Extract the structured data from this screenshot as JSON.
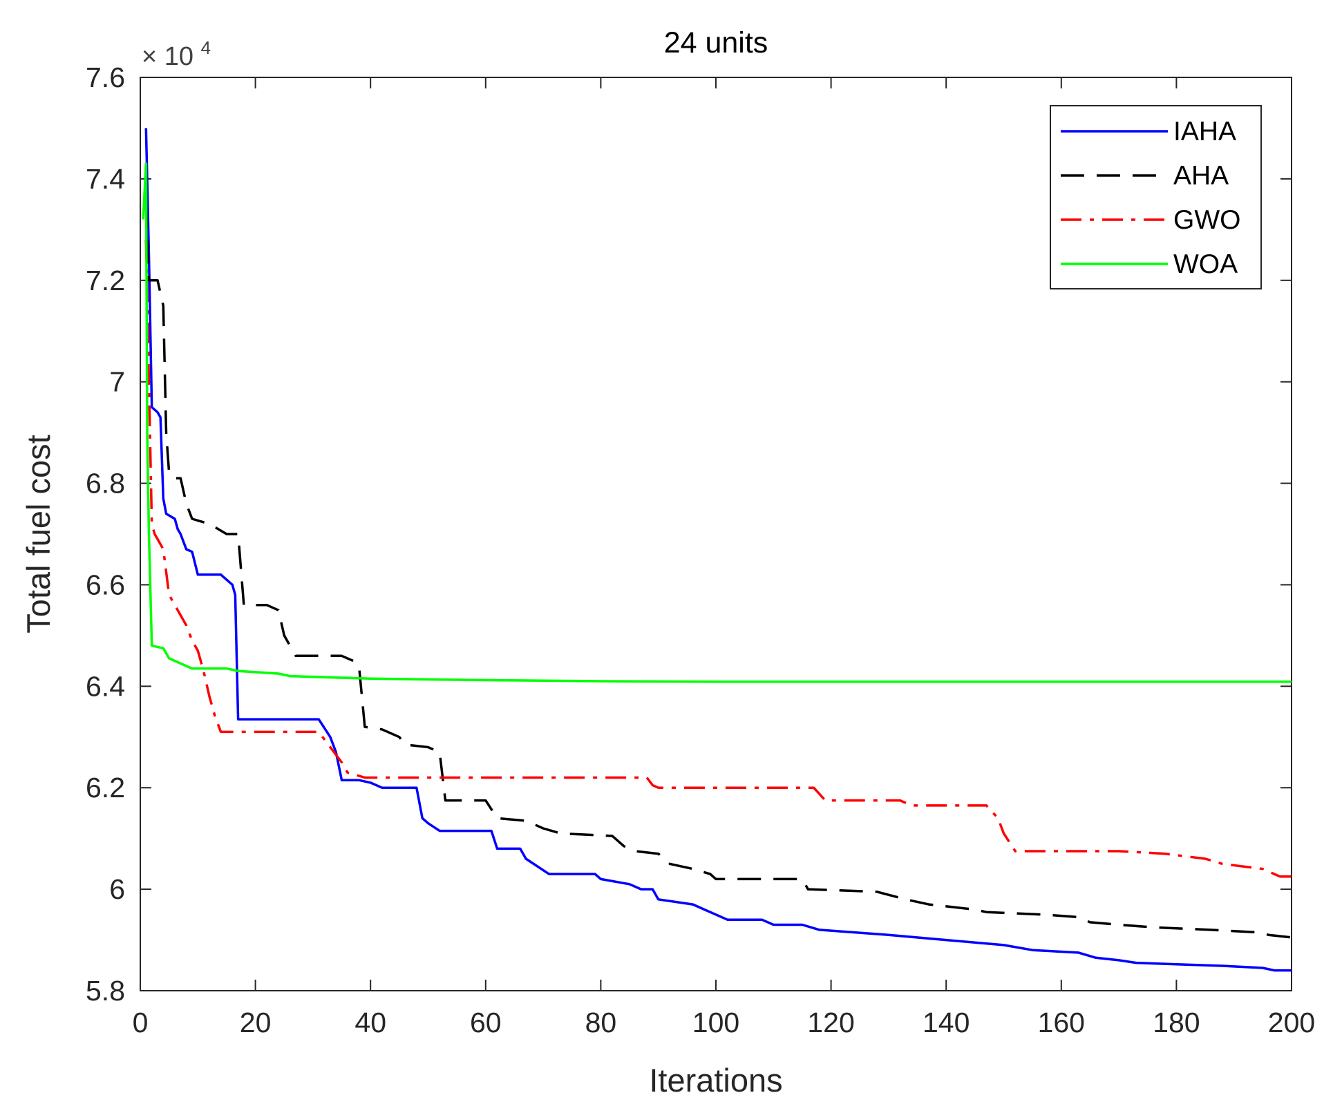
{
  "chart_data": {
    "type": "line",
    "title": "24 units",
    "xlabel": "Iterations",
    "ylabel": "Total fuel cost",
    "y_exponent_multiplier": "×",
    "y_exponent_base": "10",
    "y_exponent_power": "4",
    "xlim": [
      0,
      200
    ],
    "ylim": [
      5.8,
      7.6
    ],
    "xticks": [
      0,
      20,
      40,
      60,
      80,
      100,
      120,
      140,
      160,
      180,
      200
    ],
    "xtick_labels": [
      "0",
      "20",
      "40",
      "60",
      "80",
      "100",
      "120",
      "140",
      "160",
      "180",
      "200"
    ],
    "yticks": [
      5.8,
      6.0,
      6.2,
      6.4,
      6.6,
      6.8,
      7.0,
      7.2,
      7.4,
      7.6
    ],
    "ytick_labels": [
      "5.8",
      "6",
      "6.2",
      "6.4",
      "6.6",
      "6.8",
      "7",
      "7.2",
      "7.4",
      "7.6"
    ],
    "legend_position": "top-right",
    "grid": false,
    "series": [
      {
        "name": "IAHA",
        "color": "#0000ff",
        "dash": "solid",
        "points": [
          [
            1,
            7.5
          ],
          [
            1.5,
            7.25
          ],
          [
            2,
            6.95
          ],
          [
            3,
            6.94
          ],
          [
            3.5,
            6.93
          ],
          [
            4,
            6.77
          ],
          [
            4.5,
            6.74
          ],
          [
            6,
            6.73
          ],
          [
            6.5,
            6.71
          ],
          [
            7,
            6.7
          ],
          [
            8,
            6.67
          ],
          [
            9,
            6.665
          ],
          [
            10,
            6.62
          ],
          [
            14,
            6.62
          ],
          [
            16,
            6.6
          ],
          [
            16.5,
            6.58
          ],
          [
            17,
            6.335
          ],
          [
            31,
            6.335
          ],
          [
            33,
            6.3
          ],
          [
            34,
            6.27
          ],
          [
            35,
            6.215
          ],
          [
            38,
            6.215
          ],
          [
            40,
            6.21
          ],
          [
            42,
            6.2
          ],
          [
            48,
            6.2
          ],
          [
            49,
            6.14
          ],
          [
            50,
            6.13
          ],
          [
            52,
            6.115
          ],
          [
            61,
            6.115
          ],
          [
            62,
            6.08
          ],
          [
            66,
            6.08
          ],
          [
            67,
            6.06
          ],
          [
            71,
            6.03
          ],
          [
            79,
            6.03
          ],
          [
            80,
            6.02
          ],
          [
            85,
            6.01
          ],
          [
            87,
            6.0
          ],
          [
            89,
            6.0
          ],
          [
            90,
            5.98
          ],
          [
            96,
            5.97
          ],
          [
            98,
            5.96
          ],
          [
            100,
            5.95
          ],
          [
            102,
            5.94
          ],
          [
            108,
            5.94
          ],
          [
            110,
            5.93
          ],
          [
            115,
            5.93
          ],
          [
            118,
            5.92
          ],
          [
            130,
            5.91
          ],
          [
            140,
            5.9
          ],
          [
            145,
            5.895
          ],
          [
            150,
            5.89
          ],
          [
            155,
            5.88
          ],
          [
            163,
            5.875
          ],
          [
            166,
            5.865
          ],
          [
            170,
            5.86
          ],
          [
            173,
            5.855
          ],
          [
            180,
            5.852
          ],
          [
            188,
            5.849
          ],
          [
            195,
            5.845
          ],
          [
            197,
            5.84
          ],
          [
            200,
            5.84
          ]
        ]
      },
      {
        "name": "AHA",
        "color": "#000000",
        "dash": "dashed",
        "points": [
          [
            1,
            7.35
          ],
          [
            1.5,
            7.2
          ],
          [
            3,
            7.2
          ],
          [
            4,
            7.15
          ],
          [
            4.5,
            6.9
          ],
          [
            5,
            6.82
          ],
          [
            6,
            6.81
          ],
          [
            7,
            6.81
          ],
          [
            8,
            6.76
          ],
          [
            9,
            6.73
          ],
          [
            12,
            6.72
          ],
          [
            15,
            6.7
          ],
          [
            17,
            6.7
          ],
          [
            18,
            6.56
          ],
          [
            22,
            6.56
          ],
          [
            24,
            6.55
          ],
          [
            25,
            6.5
          ],
          [
            27,
            6.46
          ],
          [
            30,
            6.46
          ],
          [
            35,
            6.46
          ],
          [
            37,
            6.45
          ],
          [
            38,
            6.44
          ],
          [
            39,
            6.32
          ],
          [
            42,
            6.315
          ],
          [
            45,
            6.3
          ],
          [
            46,
            6.285
          ],
          [
            50,
            6.28
          ],
          [
            52,
            6.27
          ],
          [
            53,
            6.175
          ],
          [
            60,
            6.175
          ],
          [
            62,
            6.14
          ],
          [
            67,
            6.135
          ],
          [
            70,
            6.12
          ],
          [
            73,
            6.11
          ],
          [
            82,
            6.105
          ],
          [
            84,
            6.085
          ],
          [
            86,
            6.075
          ],
          [
            90,
            6.07
          ],
          [
            92,
            6.05
          ],
          [
            96,
            6.04
          ],
          [
            99,
            6.03
          ],
          [
            100,
            6.02
          ],
          [
            115,
            6.02
          ],
          [
            116,
            6.0
          ],
          [
            128,
            5.995
          ],
          [
            133,
            5.98
          ],
          [
            137,
            5.97
          ],
          [
            141,
            5.965
          ],
          [
            145,
            5.96
          ],
          [
            147,
            5.955
          ],
          [
            157,
            5.95
          ],
          [
            163,
            5.945
          ],
          [
            165,
            5.935
          ],
          [
            170,
            5.93
          ],
          [
            176,
            5.925
          ],
          [
            186,
            5.92
          ],
          [
            194,
            5.915
          ],
          [
            196,
            5.91
          ],
          [
            200,
            5.905
          ]
        ]
      },
      {
        "name": "GWO",
        "color": "#ff0000",
        "dash": "dashdot",
        "points": [
          [
            1,
            7.28
          ],
          [
            1.5,
            7.0
          ],
          [
            2,
            6.72
          ],
          [
            2.5,
            6.7
          ],
          [
            3,
            6.69
          ],
          [
            4,
            6.67
          ],
          [
            5,
            6.58
          ],
          [
            6,
            6.56
          ],
          [
            7,
            6.54
          ],
          [
            8,
            6.52
          ],
          [
            9,
            6.49
          ],
          [
            10,
            6.47
          ],
          [
            11,
            6.43
          ],
          [
            12,
            6.38
          ],
          [
            13,
            6.34
          ],
          [
            14,
            6.31
          ],
          [
            31,
            6.31
          ],
          [
            32,
            6.295
          ],
          [
            33,
            6.28
          ],
          [
            35,
            6.25
          ],
          [
            36,
            6.23
          ],
          [
            39,
            6.22
          ],
          [
            65,
            6.22
          ],
          [
            88,
            6.22
          ],
          [
            89,
            6.205
          ],
          [
            90,
            6.2
          ],
          [
            95,
            6.2
          ],
          [
            117,
            6.2
          ],
          [
            119,
            6.175
          ],
          [
            132,
            6.175
          ],
          [
            134,
            6.165
          ],
          [
            147,
            6.165
          ],
          [
            149,
            6.14
          ],
          [
            150,
            6.11
          ],
          [
            152,
            6.075
          ],
          [
            165,
            6.075
          ],
          [
            170,
            6.075
          ],
          [
            178,
            6.07
          ],
          [
            185,
            6.06
          ],
          [
            188,
            6.05
          ],
          [
            195,
            6.04
          ],
          [
            197,
            6.03
          ],
          [
            198,
            6.025
          ],
          [
            200,
            6.025
          ]
        ]
      },
      {
        "name": "WOA",
        "color": "#00ff00",
        "dash": "solid",
        "points": [
          [
            0.5,
            7.32
          ],
          [
            1,
            7.43
          ],
          [
            1.2,
            6.9
          ],
          [
            1.5,
            6.7
          ],
          [
            2,
            6.48
          ],
          [
            4,
            6.475
          ],
          [
            5,
            6.455
          ],
          [
            6,
            6.45
          ],
          [
            8,
            6.44
          ],
          [
            9,
            6.435
          ],
          [
            15,
            6.435
          ],
          [
            17,
            6.43
          ],
          [
            24,
            6.425
          ],
          [
            26,
            6.42
          ],
          [
            40,
            6.415
          ],
          [
            60,
            6.412
          ],
          [
            80,
            6.41
          ],
          [
            100,
            6.409
          ],
          [
            140,
            6.409
          ],
          [
            200,
            6.409
          ]
        ]
      }
    ]
  }
}
